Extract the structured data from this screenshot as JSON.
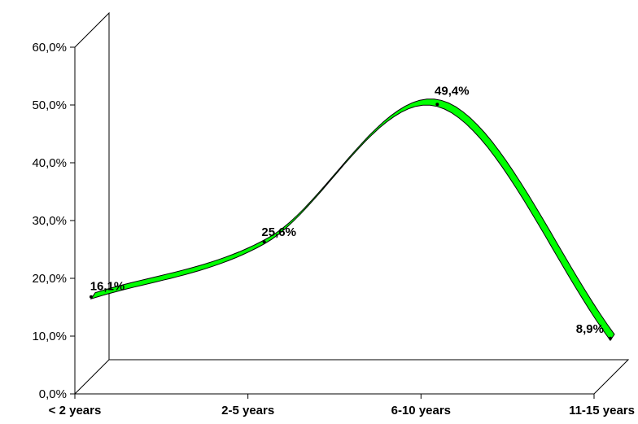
{
  "chart_data": {
    "type": "line",
    "style": "3d-ribbon-smoothed",
    "title": "",
    "xlabel": "",
    "ylabel": "",
    "categories": [
      "< 2 years",
      "2-5 years",
      "6-10 years",
      "11-15 years"
    ],
    "series": [
      {
        "values": [
          16.1,
          25.6,
          49.4,
          8.9
        ],
        "labels": [
          "16,1%",
          "25,6%",
          "49,4%",
          "8,9%"
        ],
        "color": "#00ff00"
      }
    ],
    "ylim": [
      0,
      60
    ],
    "yticks": [
      "0,0%",
      "10,0%",
      "20,0%",
      "30,0%",
      "40,0%",
      "50,0%",
      "60,0%"
    ],
    "grid": false,
    "legend": "none"
  }
}
